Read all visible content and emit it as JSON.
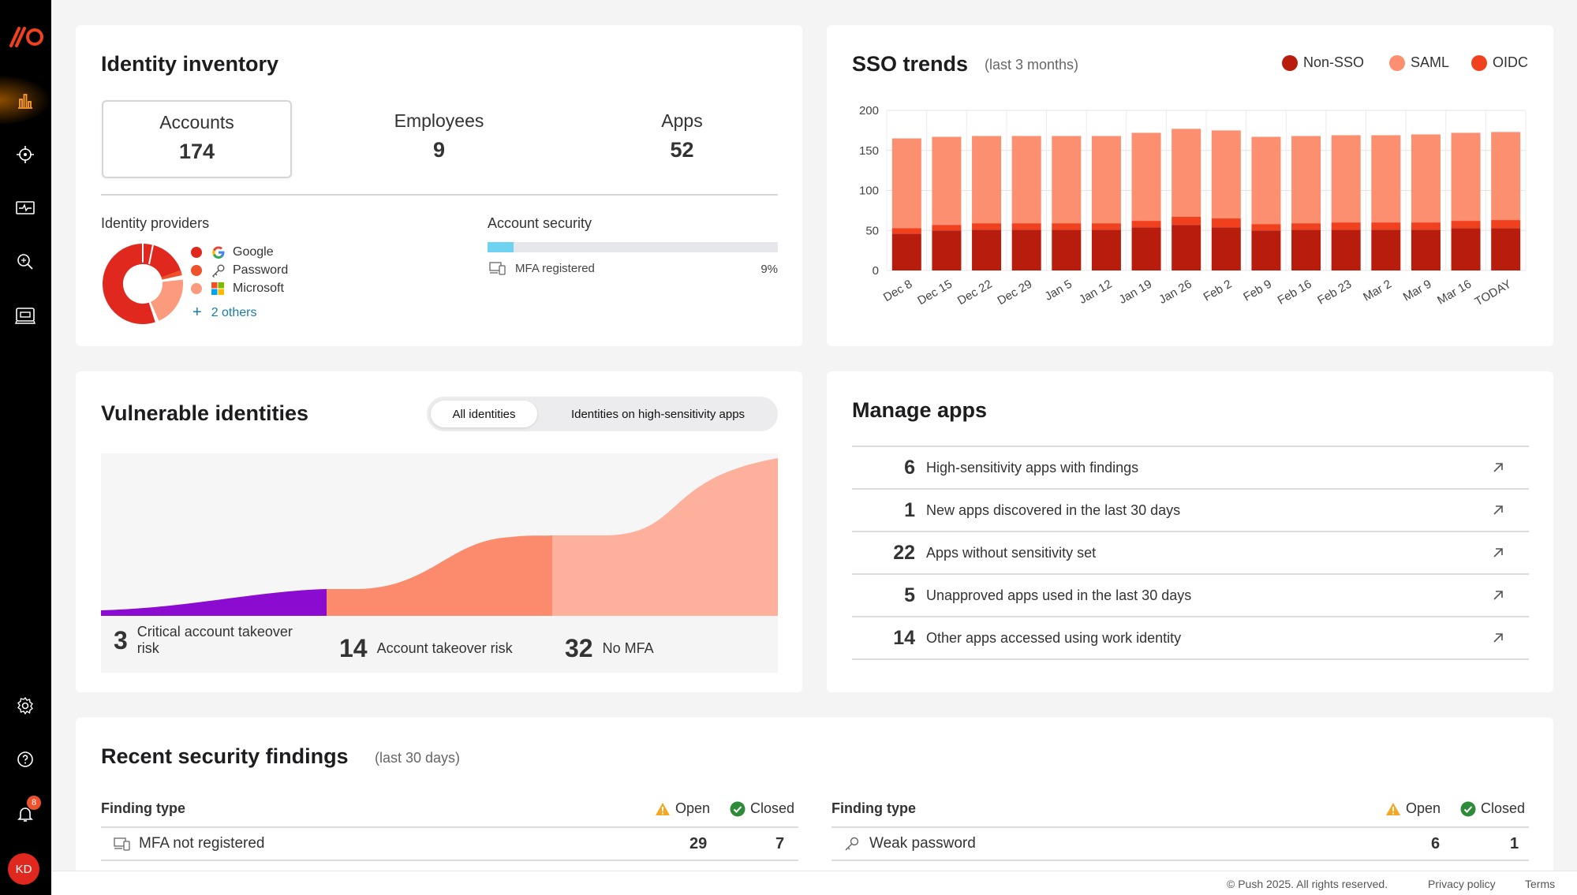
{
  "sidebar": {
    "logo": "//O",
    "items": [
      "dashboard-icon",
      "crosshair-icon",
      "monitor-icon",
      "search-icon",
      "browser-icon"
    ],
    "bottom": [
      "gear-icon",
      "help-icon",
      "bell-icon"
    ],
    "notification_count": "8",
    "avatar": "KD"
  },
  "identity_inventory": {
    "title": "Identity inventory",
    "stats": [
      {
        "label": "Accounts",
        "value": "174"
      },
      {
        "label": "Employees",
        "value": "9"
      },
      {
        "label": "Apps",
        "value": "52"
      }
    ],
    "providers_title": "Identity providers",
    "providers": [
      {
        "name": "Google",
        "color": "#e1281f"
      },
      {
        "name": "Password",
        "color": "#f0512d"
      },
      {
        "name": "Microsoft",
        "color": "#fb9a7d"
      }
    ],
    "others_link": "2 others",
    "security_title": "Account security",
    "mfa_label": "MFA registered",
    "mfa_percent": "9%",
    "mfa_fraction": 0.09
  },
  "sso_trends": {
    "title": "SSO trends",
    "subtitle": "(last 3 months)",
    "legend": [
      {
        "name": "Non-SSO",
        "color": "#b81c0d"
      },
      {
        "name": "SAML",
        "color": "#fb8f6f"
      },
      {
        "name": "OIDC",
        "color": "#f0401d"
      }
    ]
  },
  "chart_data": {
    "type": "bar",
    "stacked": true,
    "categories": [
      "Dec 8",
      "Dec 15",
      "Dec 22",
      "Dec 29",
      "Jan 5",
      "Jan 12",
      "Jan 19",
      "Jan 26",
      "Feb 2",
      "Feb 9",
      "Feb 16",
      "Feb 23",
      "Mar 2",
      "Mar 9",
      "Mar 16",
      "TODAY"
    ],
    "series": [
      {
        "name": "Non-SSO",
        "values": [
          46,
          50,
          51,
          51,
          51,
          51,
          54,
          57,
          54,
          50,
          51,
          51,
          51,
          51,
          53,
          53
        ]
      },
      {
        "name": "OIDC",
        "values": [
          7,
          7,
          8,
          8,
          8,
          8,
          8,
          10,
          11,
          8,
          8,
          9,
          9,
          9,
          9,
          10
        ]
      },
      {
        "name": "SAML",
        "values": [
          112,
          110,
          109,
          109,
          109,
          109,
          110,
          110,
          110,
          109,
          109,
          109,
          109,
          110,
          110,
          110
        ]
      }
    ],
    "ylim": [
      0,
      200
    ],
    "yticks": [
      0,
      50,
      100,
      150,
      200
    ],
    "grid": true,
    "legend_position": "top-right"
  },
  "vulnerable": {
    "title": "Vulnerable identities",
    "toggle": [
      "All identities",
      "Identities on high-sensitivity apps"
    ],
    "stats": [
      {
        "value": "3",
        "label": "Critical account takeover risk"
      },
      {
        "value": "14",
        "label": "Account takeover risk"
      },
      {
        "value": "32",
        "label": "No MFA"
      }
    ],
    "colors": [
      "#8b0bd1",
      "#fb8b6c",
      "#fdb09c"
    ]
  },
  "manage_apps": {
    "title": "Manage apps",
    "rows": [
      {
        "count": "6",
        "label": "High-sensitivity apps with findings"
      },
      {
        "count": "1",
        "label": "New apps discovered in the last 30 days"
      },
      {
        "count": "22",
        "label": "Apps without sensitivity set"
      },
      {
        "count": "5",
        "label": "Unapproved apps used in the last 30 days"
      },
      {
        "count": "14",
        "label": "Other apps accessed using work identity"
      }
    ]
  },
  "findings": {
    "title": "Recent security findings",
    "subtitle": "(last 30 days)",
    "col_type": "Finding type",
    "col_open": "Open",
    "col_closed": "Closed",
    "left_row": {
      "label": "MFA not registered",
      "open": "29",
      "closed": "7"
    },
    "right_row": {
      "label": "Weak password",
      "open": "6",
      "closed": "1"
    }
  },
  "footer": {
    "copyright": "© Push 2025. All rights reserved.",
    "privacy": "Privacy policy",
    "terms": "Terms"
  }
}
